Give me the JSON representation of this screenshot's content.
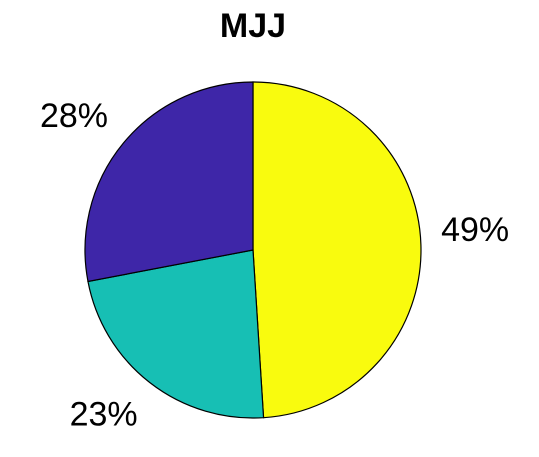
{
  "chart_data": {
    "type": "pie",
    "title": "MJJ",
    "categories": [
      null,
      null,
      null
    ],
    "values": [
      49,
      23,
      28
    ],
    "value_labels": [
      "49%",
      "23%",
      "28%"
    ],
    "colors": [
      "#f9fb0e",
      "#17bfb4",
      "#3e26a8"
    ]
  }
}
